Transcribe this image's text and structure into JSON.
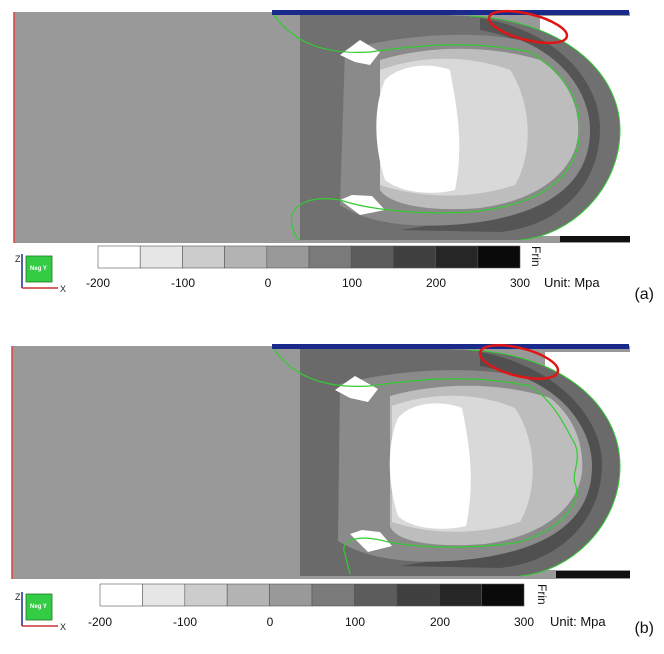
{
  "panels": [
    {
      "label": "(a)",
      "legend": {
        "ticks": [
          "-200",
          "-100",
          "0",
          "100",
          "200",
          "300"
        ],
        "unit": "Unit: Mpa",
        "side_text": "Frin",
        "view_cube": "Neg Y",
        "axis_up": "Z",
        "axis_right": "X"
      }
    },
    {
      "label": "(b)",
      "legend": {
        "ticks": [
          "-200",
          "-100",
          "0",
          "100",
          "200",
          "300"
        ],
        "unit": "Unit: Mpa",
        "side_text": "Frin",
        "view_cube": "Neg Y",
        "axis_up": "Z",
        "axis_right": "X"
      }
    }
  ],
  "colors": {
    "background_gray": "#999999",
    "legend_bins": [
      "#ffffff",
      "#e6e6e6",
      "#cccccc",
      "#b3b3b3",
      "#999999",
      "#7a7a7a",
      "#5c5c5c",
      "#404040",
      "#262626",
      "#0a0a0a"
    ],
    "highlight_ellipse": "#e01515",
    "contour_line": "#33cc33",
    "left_edge": "#e04040",
    "top_edge": "#1a2a8a",
    "view_cube": "#33cc44"
  }
}
